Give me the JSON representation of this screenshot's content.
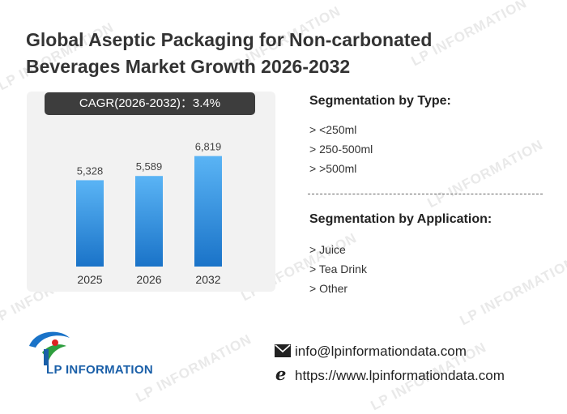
{
  "title_line1": "Global Aseptic Packaging for Non-carbonated",
  "title_line2": "Beverages Market Growth 2026-2032",
  "cagr_label": "CAGR(2026-2032)：3.4%",
  "chart_data": {
    "type": "bar",
    "categories": [
      "2025",
      "2026",
      "2032"
    ],
    "values": [
      5328,
      5589,
      6819
    ],
    "value_labels": [
      "5,328",
      "5,589",
      "6,819"
    ],
    "ylim": [
      0,
      9000
    ],
    "grid": false,
    "bar_color": "#2b8ee0"
  },
  "segmentation_type": {
    "title": "Segmentation by Type:",
    "items": [
      "> <250ml",
      "> 250-500ml",
      "> >500ml"
    ]
  },
  "segmentation_application": {
    "title": "Segmentation by Application:",
    "items": [
      "> Juice",
      "> Tea Drink",
      "> Other"
    ]
  },
  "logo_text": "LP INFORMATION",
  "watermark_text": "LP INFORMATION",
  "contact": {
    "email": "info@lpinformationdata.com",
    "website": "https://www.lpinformationdata.com"
  },
  "icons": {
    "email": "envelope-icon",
    "website": "browser-e-icon"
  }
}
